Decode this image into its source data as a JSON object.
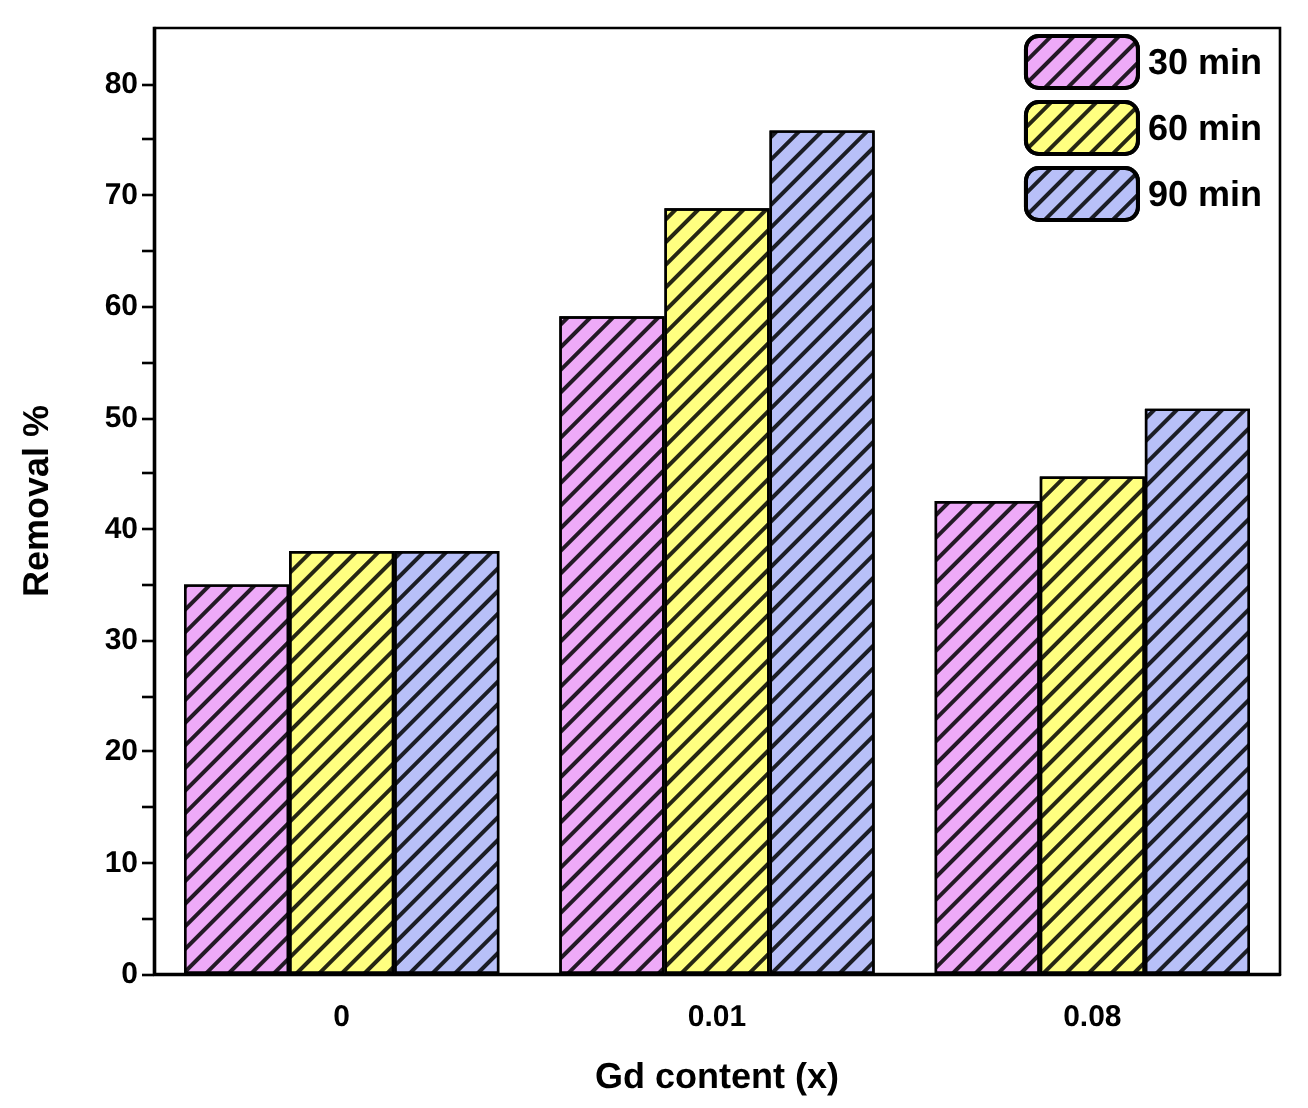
{
  "chart_data": {
    "type": "bar",
    "xlabel": "Gd content (x)",
    "ylabel": "Removal %",
    "categories": [
      "0",
      "0.01",
      "0.08"
    ],
    "series": [
      {
        "name": "30 min",
        "color": "#eeaaf8",
        "values": [
          35.0,
          59.1,
          42.5
        ]
      },
      {
        "name": "60 min",
        "color": "#ffff80",
        "values": [
          38.0,
          68.8,
          44.7
        ]
      },
      {
        "name": "90 min",
        "color": "#b8c0f8",
        "values": [
          38.0,
          75.8,
          50.8
        ]
      }
    ],
    "ylim": [
      0,
      85
    ],
    "yticks": [
      0,
      {
        "value": 5,
        "label": null
      },
      10,
      {
        "value": 15,
        "label": null
      },
      20,
      {
        "value": 25,
        "label": null
      },
      30,
      {
        "value": 35,
        "label": null
      },
      40,
      {
        "value": 45,
        "label": null
      },
      50,
      {
        "value": 55,
        "label": null
      },
      60,
      {
        "value": 65,
        "label": null
      },
      70,
      {
        "value": 75,
        "label": null
      },
      80
    ],
    "grid": false,
    "legend": "top right"
  }
}
